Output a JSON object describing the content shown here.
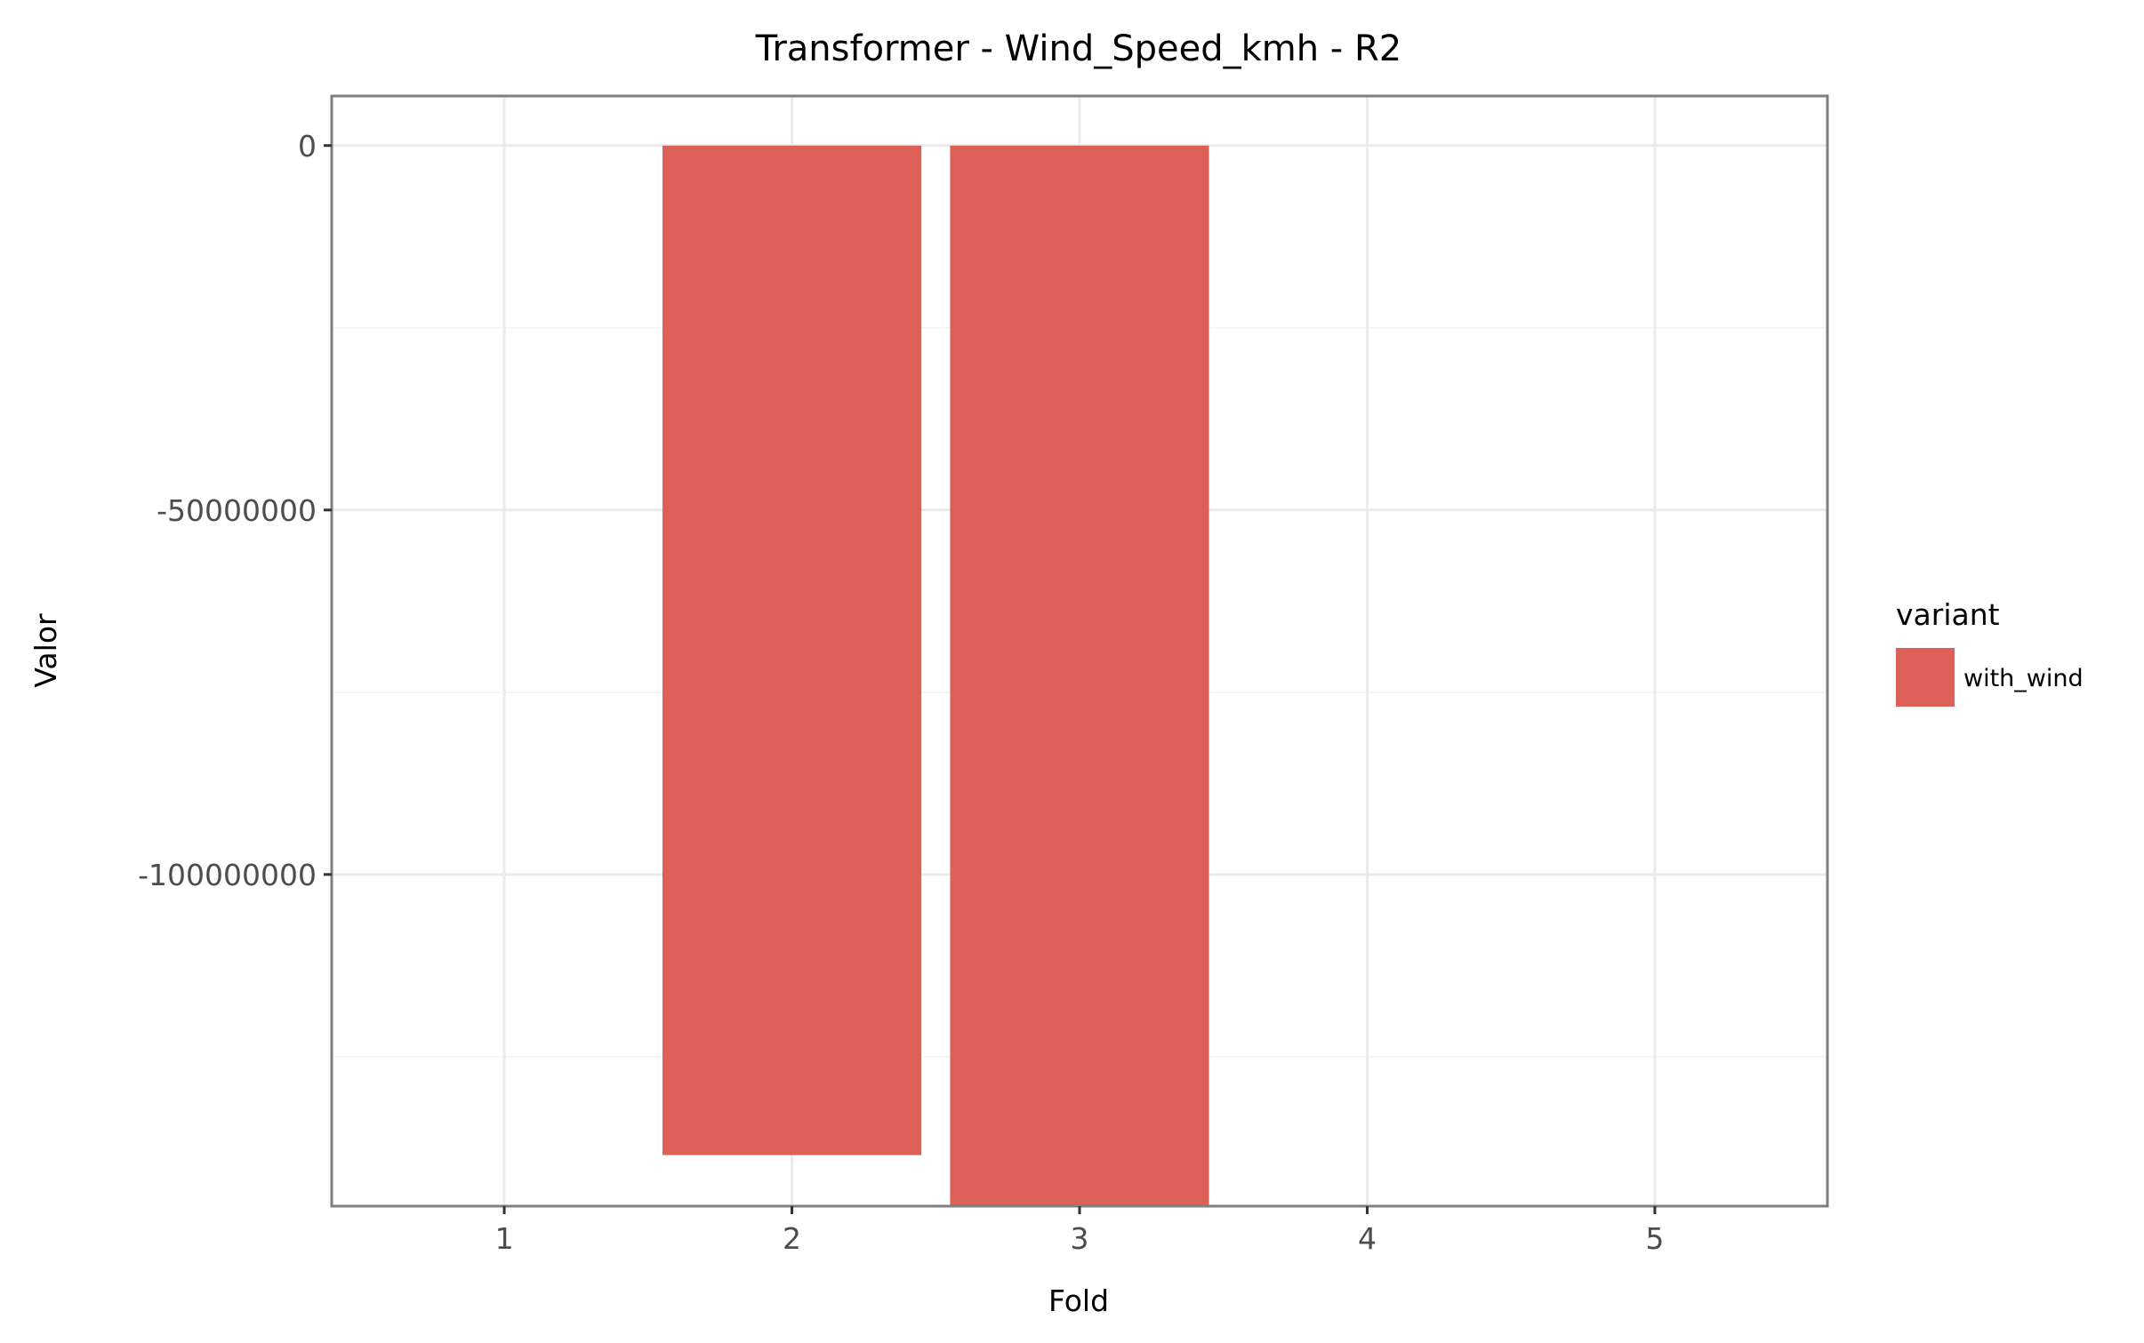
{
  "chart_data": {
    "type": "bar",
    "title": "Transformer - Wind_Speed_kmh - R2",
    "xlabel": "Fold",
    "ylabel": "Valor",
    "categories": [
      "1",
      "2",
      "3",
      "4",
      "5"
    ],
    "series": [
      {
        "name": "with_wind",
        "values": [
          null,
          -138500000,
          -145500000,
          null,
          null
        ],
        "color": "#dc5f58"
      }
    ],
    "ylim": [
      -145500000,
      6800000
    ],
    "y_ticks": [
      0,
      -50000000,
      -100000000
    ],
    "y_tick_labels": [
      "0",
      "-50000000",
      "-100000000"
    ],
    "grid": true,
    "legend": {
      "title": "variant",
      "placement": "right",
      "entries": [
        "with_wind"
      ]
    },
    "colors": {
      "bar": "#dc5f58",
      "grid": "#ebebeb",
      "panel_border": "#7f7f7f",
      "tick_text": "#4d4d4d"
    }
  }
}
